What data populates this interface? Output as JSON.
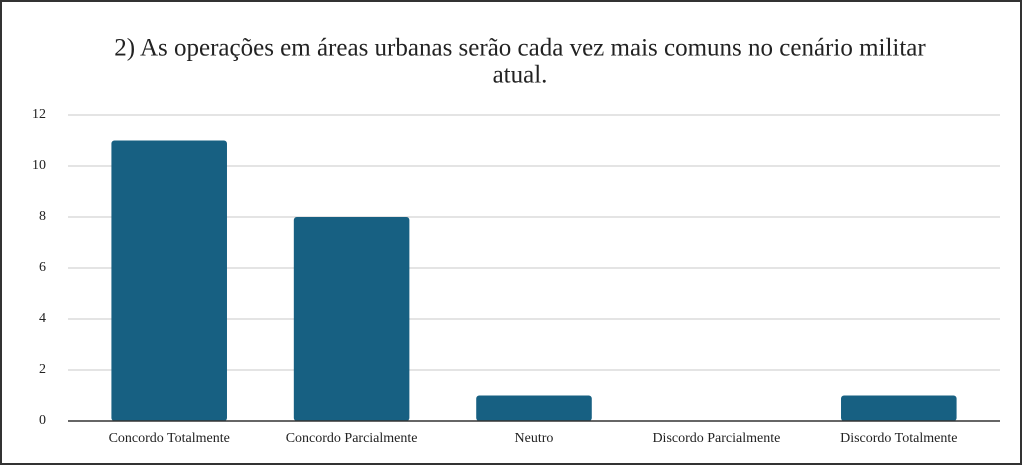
{
  "chart_data": {
    "type": "bar",
    "title": "2) As operações em áreas urbanas serão cada vez mais comuns no cenário militar atual.",
    "categories": [
      "Concordo Totalmente",
      "Concordo Parcialmente",
      "Neutro",
      "Discordo Parcialmente",
      "Discordo Totalmente"
    ],
    "values": [
      11,
      8,
      1,
      0,
      1
    ],
    "color": "#176082",
    "ylim": [
      0,
      12
    ],
    "yticks": [
      0,
      2,
      4,
      6,
      8,
      10,
      12
    ],
    "grid": true
  }
}
